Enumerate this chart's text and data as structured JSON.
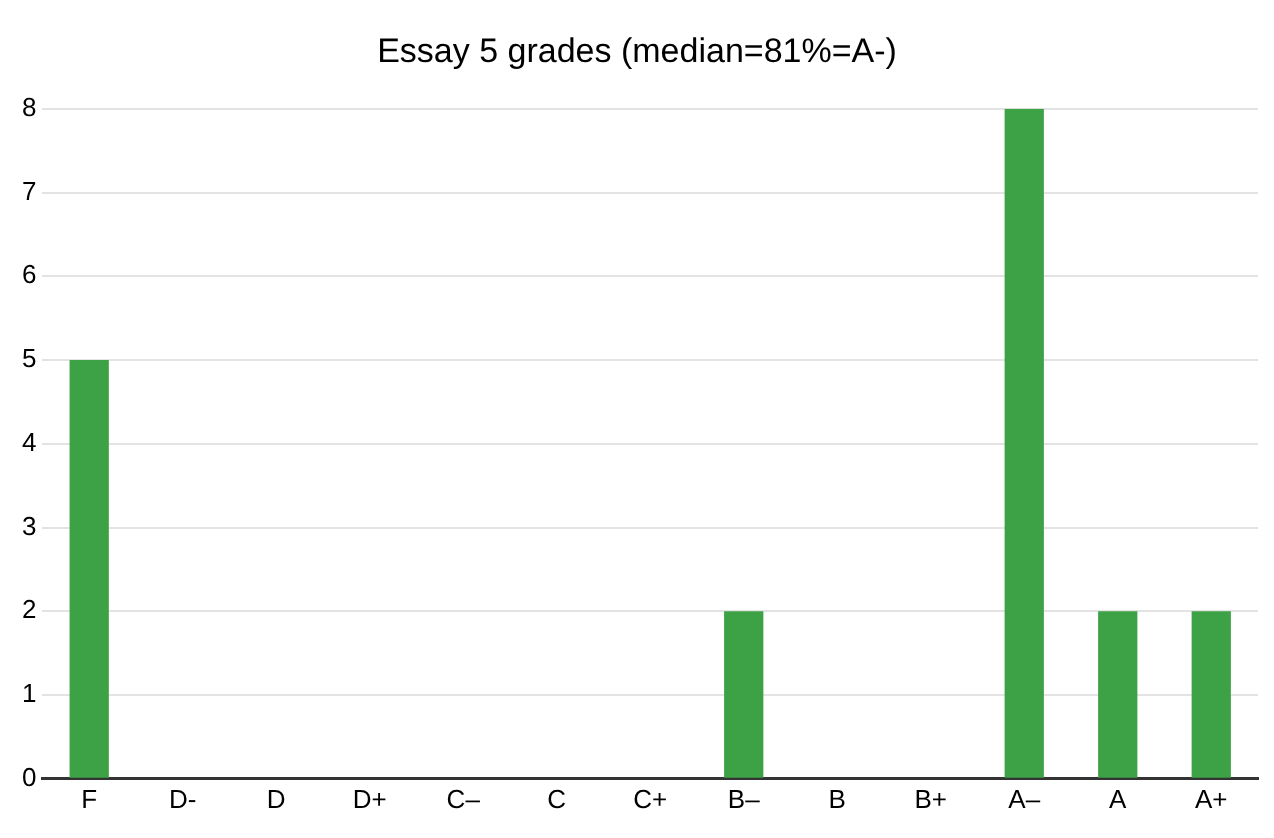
{
  "chart_data": {
    "type": "bar",
    "title": "Essay 5 grades (median=81%=A-)",
    "categories": [
      "F",
      "D-",
      "D",
      "D+",
      "C–",
      "C",
      "C+",
      "B–",
      "B",
      "B+",
      "A–",
      "A",
      "A+"
    ],
    "values": [
      5,
      0,
      0,
      0,
      0,
      0,
      0,
      2,
      0,
      0,
      8,
      2,
      2
    ],
    "color": "#3da245",
    "ylim": [
      0,
      8
    ],
    "yticks": [
      0,
      1,
      2,
      3,
      4,
      5,
      6,
      7,
      8
    ],
    "grid": "y",
    "legend": false
  }
}
